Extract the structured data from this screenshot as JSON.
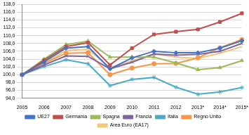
{
  "chart_data": {
    "type": "line",
    "categories": [
      "2005",
      "2006",
      "2007",
      "2008",
      "2009",
      "2010",
      "2011",
      "2012",
      "2013*",
      "2014*",
      "2015*"
    ],
    "series": [
      {
        "name": "UE27",
        "color": "#4472c4",
        "marker": "diamond",
        "values": [
          100,
          103.3,
          106.8,
          107.2,
          101.5,
          104.3,
          106.0,
          105.6,
          105.6,
          106.8,
          108.7
        ]
      },
      {
        "name": "Germania",
        "color": "#c0504d",
        "marker": "square",
        "values": [
          100,
          103.7,
          107.2,
          108.2,
          102.5,
          106.8,
          110.3,
          111.0,
          111.6,
          113.5,
          115.7
        ]
      },
      {
        "name": "Spagna",
        "color": "#9bbb59",
        "marker": "triangle",
        "values": [
          100,
          104.0,
          107.7,
          108.6,
          104.5,
          104.5,
          104.5,
          103.0,
          101.3,
          101.8,
          103.6
        ]
      },
      {
        "name": "Francia",
        "color": "#8064a2",
        "marker": "x",
        "values": [
          100,
          102.5,
          104.8,
          104.7,
          101.5,
          103.2,
          105.3,
          105.0,
          105.2,
          106.0,
          108.0
        ]
      },
      {
        "name": "Italia",
        "color": "#4bacc6",
        "marker": "star",
        "values": [
          100,
          102.1,
          103.8,
          102.8,
          97.2,
          98.8,
          99.3,
          96.8,
          95.0,
          95.6,
          96.7
        ]
      },
      {
        "name": "Regno Unito",
        "color": "#f79646",
        "marker": "circle",
        "values": [
          100,
          102.9,
          105.5,
          105.6,
          100.0,
          101.7,
          102.8,
          102.9,
          104.3,
          106.9,
          109.0
        ]
      },
      {
        "name": "Area Euro (EA17)",
        "color": "#f2c77a",
        "marker": "none",
        "values": [
          100,
          103.0,
          106.2,
          106.5,
          101.8,
          103.5,
          105.3,
          104.5,
          104.2,
          105.5,
          107.2
        ]
      }
    ],
    "ylim": [
      94,
      118
    ],
    "yticks": [
      {
        "value": 94,
        "label": "94,0"
      },
      {
        "value": 96,
        "label": "96,0"
      },
      {
        "value": 98,
        "label": "98,0"
      },
      {
        "value": 100,
        "label": "100,0"
      },
      {
        "value": 102,
        "label": "102,0"
      },
      {
        "value": 104,
        "label": "104,0"
      },
      {
        "value": 106,
        "label": "106,0"
      },
      {
        "value": 108,
        "label": "108,0"
      },
      {
        "value": 110,
        "label": "110,0"
      },
      {
        "value": 112,
        "label": "112,0"
      },
      {
        "value": 114,
        "label": "114,0"
      },
      {
        "value": 116,
        "label": "116,0"
      },
      {
        "value": 118,
        "label": "118,0"
      }
    ],
    "grid": true,
    "legend": "bottom"
  }
}
